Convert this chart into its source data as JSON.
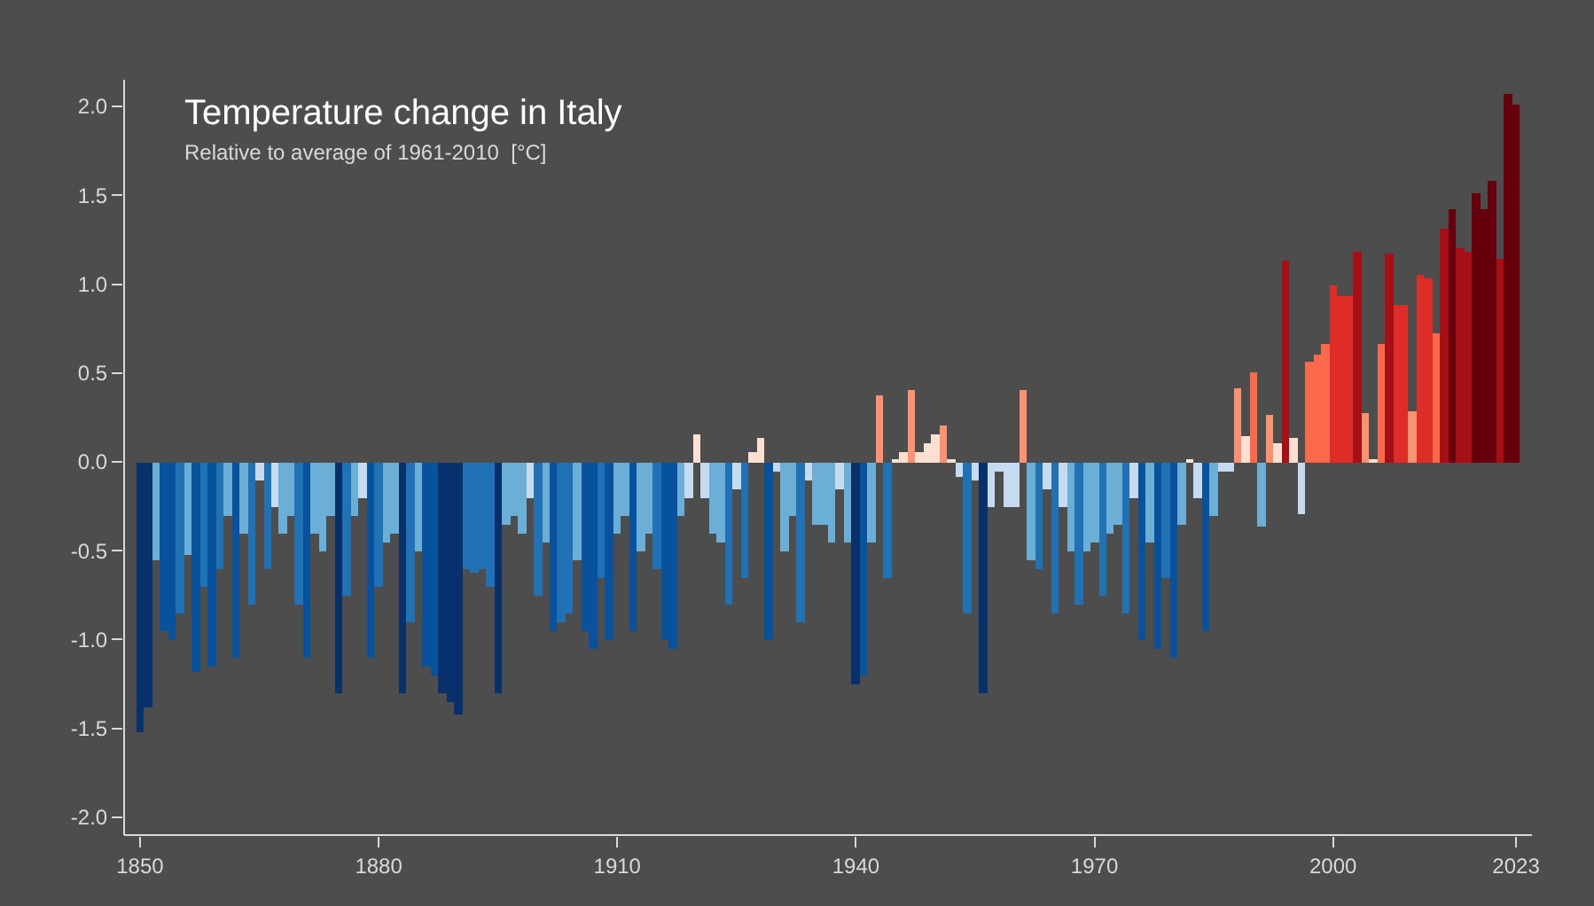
{
  "chart_data": {
    "type": "bar",
    "title": "Temperature change in Italy",
    "subtitle": "Relative to average of 1961-2010  [°C]",
    "x": [
      1850,
      1851,
      1852,
      1853,
      1854,
      1855,
      1856,
      1857,
      1858,
      1859,
      1860,
      1861,
      1862,
      1863,
      1864,
      1865,
      1866,
      1867,
      1868,
      1869,
      1870,
      1871,
      1872,
      1873,
      1874,
      1875,
      1876,
      1877,
      1878,
      1879,
      1880,
      1881,
      1882,
      1883,
      1884,
      1885,
      1886,
      1887,
      1888,
      1889,
      1890,
      1891,
      1892,
      1893,
      1894,
      1895,
      1896,
      1897,
      1898,
      1899,
      1900,
      1901,
      1902,
      1903,
      1904,
      1905,
      1906,
      1907,
      1908,
      1909,
      1910,
      1911,
      1912,
      1913,
      1914,
      1915,
      1916,
      1917,
      1918,
      1919,
      1920,
      1921,
      1922,
      1923,
      1924,
      1925,
      1926,
      1927,
      1928,
      1929,
      1930,
      1931,
      1932,
      1933,
      1934,
      1935,
      1936,
      1937,
      1938,
      1939,
      1940,
      1941,
      1942,
      1943,
      1944,
      1945,
      1946,
      1947,
      1948,
      1949,
      1950,
      1951,
      1952,
      1953,
      1954,
      1955,
      1956,
      1957,
      1958,
      1959,
      1960,
      1961,
      1962,
      1963,
      1964,
      1965,
      1966,
      1967,
      1968,
      1969,
      1970,
      1971,
      1972,
      1973,
      1974,
      1975,
      1976,
      1977,
      1978,
      1979,
      1980,
      1981,
      1982,
      1983,
      1984,
      1985,
      1986,
      1987,
      1988,
      1989,
      1990,
      1991,
      1992,
      1993,
      1994,
      1995,
      1996,
      1997,
      1998,
      1999,
      2000,
      2001,
      2002,
      2003,
      2004,
      2005,
      2006,
      2007,
      2008,
      2009,
      2010,
      2011,
      2012,
      2013,
      2014,
      2015,
      2016,
      2017,
      2018,
      2019,
      2020,
      2021,
      2022,
      2023
    ],
    "values": [
      -1.52,
      -1.38,
      -0.55,
      -0.95,
      -1.0,
      -0.85,
      -0.52,
      -1.18,
      -0.7,
      -1.15,
      -0.6,
      -0.3,
      -1.1,
      -0.4,
      -0.8,
      -0.1,
      -0.6,
      -0.25,
      -0.4,
      -0.3,
      -0.8,
      -1.1,
      -0.4,
      -0.5,
      -0.3,
      -1.3,
      -0.75,
      -0.3,
      -0.2,
      -1.1,
      -0.7,
      -0.45,
      -0.4,
      -1.3,
      -0.9,
      -0.5,
      -1.15,
      -1.2,
      -1.3,
      -1.35,
      -1.42,
      -0.6,
      -0.62,
      -0.6,
      -0.7,
      -1.3,
      -0.35,
      -0.3,
      -0.4,
      -0.2,
      -0.75,
      -0.45,
      -0.95,
      -0.9,
      -0.85,
      -0.55,
      -0.95,
      -1.05,
      -0.65,
      -1.0,
      -0.4,
      -0.3,
      -0.95,
      -0.5,
      -0.4,
      -0.6,
      -1.0,
      -1.05,
      -0.3,
      -0.2,
      0.15,
      -0.2,
      -0.4,
      -0.45,
      -0.8,
      -0.15,
      -0.65,
      0.05,
      0.13,
      -1.0,
      -0.05,
      -0.5,
      -0.3,
      -0.9,
      -0.1,
      -0.35,
      -0.35,
      -0.45,
      -0.15,
      -0.45,
      -1.25,
      -1.2,
      -0.45,
      0.37,
      -0.65,
      0.02,
      0.05,
      0.4,
      0.05,
      0.1,
      0.15,
      0.2,
      0.02,
      -0.08,
      -0.85,
      -0.1,
      -1.3,
      -0.25,
      -0.05,
      -0.25,
      -0.25,
      0.4,
      -0.55,
      -0.6,
      -0.15,
      -0.85,
      -0.25,
      -0.5,
      -0.8,
      -0.5,
      -0.45,
      -0.75,
      -0.4,
      -0.35,
      -0.85,
      -0.2,
      -1.0,
      -0.45,
      -1.05,
      -0.65,
      -1.1,
      -0.35,
      0.02,
      -0.2,
      -0.95,
      -0.3,
      -0.05,
      -0.05,
      0.41,
      0.14,
      0.5,
      -0.36,
      0.26,
      0.1,
      1.13,
      0.13,
      -0.29,
      0.56,
      0.6,
      0.66,
      0.99,
      0.93,
      0.93,
      1.18,
      0.27,
      0.02,
      0.66,
      1.17,
      0.88,
      0.88,
      0.28,
      1.05,
      1.03,
      0.72,
      1.31,
      1.42,
      1.2,
      1.18,
      1.51,
      1.42,
      1.58,
      1.14,
      2.07,
      2.01
    ],
    "colors": [
      "#08306b",
      "#08306b",
      "#6baed6",
      "#08519c",
      "#08519c",
      "#2171b5",
      "#6baed6",
      "#08519c",
      "#2171b5",
      "#08519c",
      "#2171b5",
      "#6baed6",
      "#08519c",
      "#6baed6",
      "#2171b5",
      "#c6dbef",
      "#2171b5",
      "#c6dbef",
      "#6baed6",
      "#6baed6",
      "#2171b5",
      "#08519c",
      "#6baed6",
      "#6baed6",
      "#6baed6",
      "#08306b",
      "#2171b5",
      "#6baed6",
      "#c6dbef",
      "#08519c",
      "#2171b5",
      "#6baed6",
      "#6baed6",
      "#08306b",
      "#2171b5",
      "#6baed6",
      "#08519c",
      "#08519c",
      "#08306b",
      "#08306b",
      "#08306b",
      "#2171b5",
      "#2171b5",
      "#2171b5",
      "#2171b5",
      "#08306b",
      "#6baed6",
      "#6baed6",
      "#6baed6",
      "#c6dbef",
      "#2171b5",
      "#6baed6",
      "#08519c",
      "#2171b5",
      "#2171b5",
      "#6baed6",
      "#08519c",
      "#08519c",
      "#2171b5",
      "#08519c",
      "#6baed6",
      "#6baed6",
      "#08519c",
      "#6baed6",
      "#6baed6",
      "#2171b5",
      "#08519c",
      "#08519c",
      "#6baed6",
      "#c6dbef",
      "#fee0d2",
      "#c6dbef",
      "#6baed6",
      "#6baed6",
      "#2171b5",
      "#c6dbef",
      "#2171b5",
      "#fee0d2",
      "#fee0d2",
      "#08519c",
      "#c6dbef",
      "#6baed6",
      "#6baed6",
      "#2171b5",
      "#c6dbef",
      "#6baed6",
      "#6baed6",
      "#6baed6",
      "#c6dbef",
      "#6baed6",
      "#08306b",
      "#08519c",
      "#6baed6",
      "#fc9272",
      "#2171b5",
      "#fee0d2",
      "#fee0d2",
      "#fc9272",
      "#fee0d2",
      "#fee0d2",
      "#fee0d2",
      "#fc9272",
      "#fee0d2",
      "#c6dbef",
      "#2171b5",
      "#c6dbef",
      "#08306b",
      "#c6dbef",
      "#c6dbef",
      "#c6dbef",
      "#c6dbef",
      "#fc9272",
      "#6baed6",
      "#2171b5",
      "#c6dbef",
      "#2171b5",
      "#c6dbef",
      "#6baed6",
      "#2171b5",
      "#6baed6",
      "#6baed6",
      "#2171b5",
      "#6baed6",
      "#6baed6",
      "#2171b5",
      "#c6dbef",
      "#08519c",
      "#6baed6",
      "#08519c",
      "#2171b5",
      "#08519c",
      "#6baed6",
      "#fee0d2",
      "#c6dbef",
      "#08519c",
      "#6baed6",
      "#c6dbef",
      "#c6dbef",
      "#fc9272",
      "#fee0d2",
      "#fb6a4a",
      "#6baed6",
      "#fc9272",
      "#fee0d2",
      "#a50f15",
      "#fee0d2",
      "#c6dbef",
      "#fb6a4a",
      "#fb6a4a",
      "#fb6a4a",
      "#de2d26",
      "#de2d26",
      "#de2d26",
      "#a50f15",
      "#fc9272",
      "#fee0d2",
      "#fb6a4a",
      "#a50f15",
      "#de2d26",
      "#de2d26",
      "#fc9272",
      "#de2d26",
      "#de2d26",
      "#fb6a4a",
      "#a50f15",
      "#67000d",
      "#a50f15",
      "#a50f15",
      "#67000d",
      "#67000d",
      "#67000d",
      "#a50f15",
      "#67000d",
      "#67000d"
    ],
    "xlim": [
      1848,
      2025
    ],
    "xticks": [
      1850,
      1880,
      1910,
      1940,
      1970,
      2000,
      2023
    ],
    "ylim": [
      -2.1,
      2.15
    ],
    "yticks": [
      {
        "value": 2,
        "label": "2.0"
      },
      {
        "value": 1.5,
        "label": "1.5"
      },
      {
        "value": 1,
        "label": "1.0"
      },
      {
        "value": 0.5,
        "label": "0.5"
      },
      {
        "value": 0,
        "label": "0.0"
      },
      {
        "value": -0.5,
        "label": "-0.5"
      },
      {
        "value": -1,
        "label": "-1.0"
      },
      {
        "value": -1.5,
        "label": "-1.5"
      },
      {
        "value": -2,
        "label": "-2.0"
      }
    ],
    "grid": false
  }
}
